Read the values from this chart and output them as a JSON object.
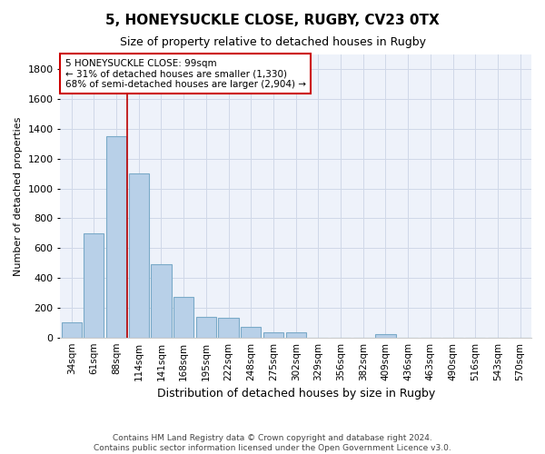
{
  "title": "5, HONEYSUCKLE CLOSE, RUGBY, CV23 0TX",
  "subtitle": "Size of property relative to detached houses in Rugby",
  "xlabel": "Distribution of detached houses by size in Rugby",
  "ylabel": "Number of detached properties",
  "footer_line1": "Contains HM Land Registry data © Crown copyright and database right 2024.",
  "footer_line2": "Contains public sector information licensed under the Open Government Licence v3.0.",
  "bar_labels": [
    "34sqm",
    "61sqm",
    "88sqm",
    "114sqm",
    "141sqm",
    "168sqm",
    "195sqm",
    "222sqm",
    "248sqm",
    "275sqm",
    "302sqm",
    "329sqm",
    "356sqm",
    "382sqm",
    "409sqm",
    "436sqm",
    "463sqm",
    "490sqm",
    "516sqm",
    "543sqm",
    "570sqm"
  ],
  "bar_values": [
    100,
    700,
    1350,
    1100,
    490,
    270,
    140,
    135,
    70,
    35,
    35,
    0,
    0,
    0,
    20,
    0,
    0,
    0,
    0,
    0,
    0
  ],
  "bar_color": "#b8d0e8",
  "bar_edgecolor": "#7aaac8",
  "grid_color": "#d0d8e8",
  "background_color": "#eef2fa",
  "vline_x": 2.5,
  "vline_color": "#bb0000",
  "annotation_text": "5 HONEYSUCKLE CLOSE: 99sqm\n← 31% of detached houses are smaller (1,330)\n68% of semi-detached houses are larger (2,904) →",
  "annotation_box_color": "#cc0000",
  "ylim": [
    0,
    1900
  ],
  "yticks": [
    0,
    200,
    400,
    600,
    800,
    1000,
    1200,
    1400,
    1600,
    1800
  ],
  "title_fontsize": 11,
  "subtitle_fontsize": 9,
  "ylabel_fontsize": 8,
  "xlabel_fontsize": 9,
  "tick_fontsize": 8,
  "xtick_fontsize": 7.5
}
